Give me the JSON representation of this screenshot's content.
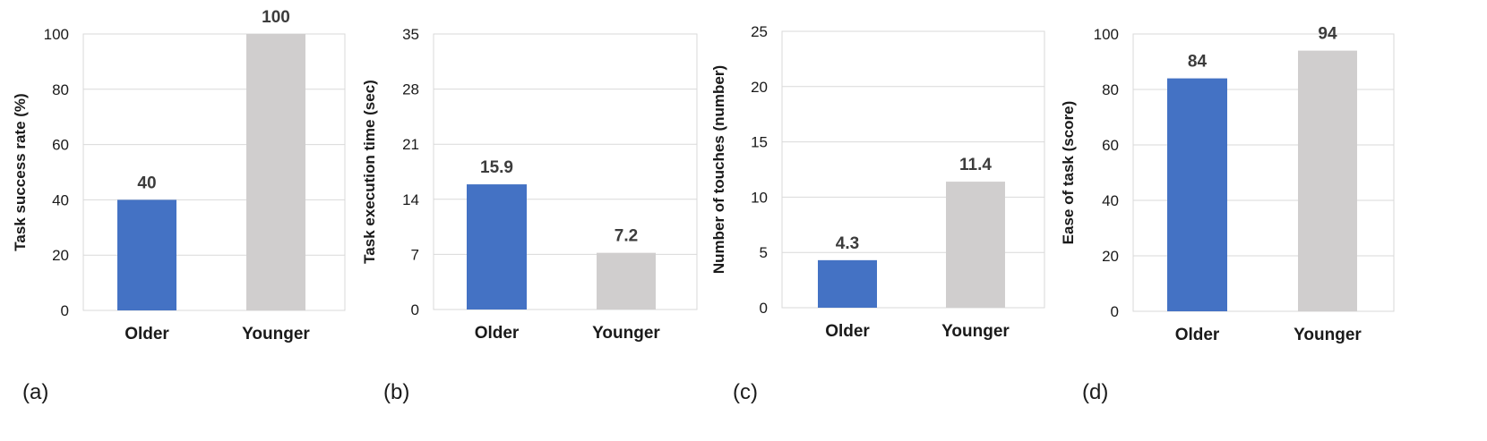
{
  "chart_data": [
    {
      "type": "bar",
      "panel": "(a)",
      "categories": [
        "Older",
        "Younger"
      ],
      "values": [
        40,
        100
      ],
      "data_labels": [
        "40",
        "100"
      ],
      "ylabel": "Task success rate (%)",
      "ylim": [
        0,
        100
      ],
      "yticks": [
        0,
        20,
        40,
        60,
        80,
        100
      ],
      "grid": true,
      "colors": [
        "#4472c4",
        "#d0cece"
      ]
    },
    {
      "type": "bar",
      "panel": "(b)",
      "categories": [
        "Older",
        "Younger"
      ],
      "values": [
        15.9,
        7.2
      ],
      "data_labels": [
        "15.9",
        "7.2"
      ],
      "ylabel": "Task execution time (sec)",
      "ylim": [
        0,
        35
      ],
      "yticks": [
        0,
        7,
        14,
        21,
        28,
        35
      ],
      "grid": true,
      "colors": [
        "#4472c4",
        "#d0cece"
      ]
    },
    {
      "type": "bar",
      "panel": "(c)",
      "categories": [
        "Older",
        "Younger"
      ],
      "values": [
        4.3,
        11.4
      ],
      "data_labels": [
        "4.3",
        "11.4"
      ],
      "ylabel": "Number of touches (number)",
      "ylim": [
        0,
        25
      ],
      "yticks": [
        0,
        5,
        10,
        15,
        20,
        25
      ],
      "grid": true,
      "colors": [
        "#4472c4",
        "#d0cece"
      ]
    },
    {
      "type": "bar",
      "panel": "(d)",
      "categories": [
        "Older",
        "Younger"
      ],
      "values": [
        84,
        94
      ],
      "data_labels": [
        "84",
        "94"
      ],
      "ylabel": "Ease of task (score)",
      "ylim": [
        0,
        100
      ],
      "yticks": [
        0,
        20,
        40,
        60,
        80,
        100
      ],
      "grid": true,
      "colors": [
        "#4472c4",
        "#d0cece"
      ]
    }
  ]
}
